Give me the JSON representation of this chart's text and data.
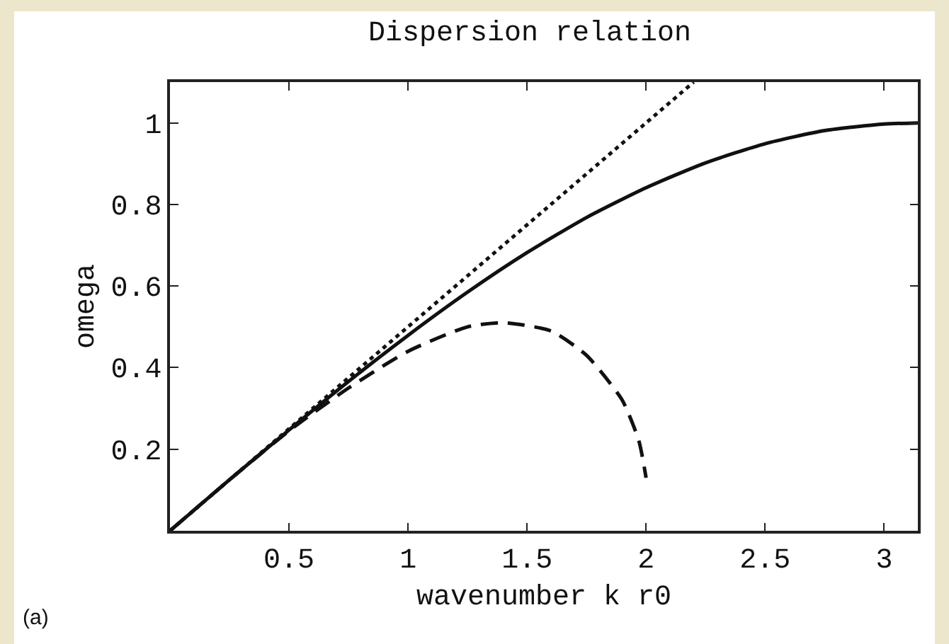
{
  "chart_data": {
    "type": "line",
    "title": "Dispersion relation",
    "xlabel": "wavenumber k r0",
    "ylabel": "omega",
    "annotations": [
      "(a)"
    ],
    "xlim": [
      0,
      3.1416
    ],
    "xticks": [
      0.5,
      1,
      1.5,
      2,
      2.5,
      3
    ],
    "ylim": [
      0,
      1.1
    ],
    "yticks": [
      0.2,
      0.4,
      0.6,
      0.8,
      1
    ],
    "grid": false,
    "marker": "none",
    "series": [
      {
        "color": "#111111",
        "line_style": "solid",
        "x": [
          0,
          0.25,
          0.5,
          0.75,
          1,
          1.25,
          1.5,
          1.75,
          2,
          2.25,
          2.5,
          2.75,
          3,
          3.1416
        ],
        "values": [
          0,
          0.125,
          0.247,
          0.366,
          0.479,
          0.585,
          0.682,
          0.768,
          0.841,
          0.902,
          0.949,
          0.981,
          0.997,
          1
        ]
      },
      {
        "color": "#111111",
        "line_style": "dotted",
        "x": [
          0,
          2.2
        ],
        "values": [
          0,
          1.1
        ]
      },
      {
        "color": "#111111",
        "line_style": "dashed",
        "x": [
          0,
          0.25,
          0.5,
          0.75,
          1,
          1.25,
          1.4,
          1.6,
          1.75,
          1.9,
          1.97,
          2
        ],
        "values": [
          0,
          0.125,
          0.245,
          0.35,
          0.44,
          0.5,
          0.51,
          0.49,
          0.43,
          0.32,
          0.22,
          0.13
        ]
      }
    ]
  }
}
